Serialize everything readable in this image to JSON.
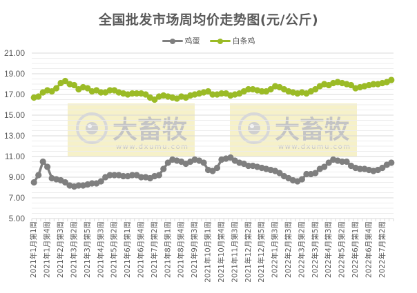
{
  "chart_data": {
    "type": "line",
    "title": "全国批发市场周均价走势图(元/公斤)",
    "xlabel": "",
    "ylabel": "",
    "ylim": [
      5.0,
      21.0
    ],
    "yticks": [
      "5.00",
      "7.00",
      "9.00",
      "11.00",
      "13.00",
      "15.00",
      "17.00",
      "19.00",
      "21.00"
    ],
    "grid": true,
    "legend_position": "top",
    "x_tick_labels": [
      "2021年1月第1周",
      "2021年1月第4周",
      "2021年2月第3周",
      "2021年3月第2周",
      "2021年3月第5周",
      "2021年4月第3周",
      "2021年5月第2周",
      "2021年6月第1周",
      "2021年6月第4周",
      "2021年7月第2周",
      "2021年8月第1周",
      "2021年8月第4周",
      "2021年9月第3周",
      "2021年10月第1周",
      "2021年10月第4周",
      "2021年11月第3周",
      "2021年12月第2周",
      "2021年12月第5周",
      "2022年1月第3周",
      "2022年2月第3周",
      "2022年3月第2周",
      "2022年3月第5周",
      "2022年4月第3周",
      "2022年5月第2周",
      "2022年6月第1周",
      "2022年6月第4周",
      "2022年7月第2周"
    ],
    "x_label_positions": [
      49,
      68,
      87,
      106,
      125,
      144,
      163,
      182,
      201,
      220,
      239,
      258,
      277,
      296,
      315,
      334,
      353,
      372,
      391,
      410,
      429,
      448,
      467,
      486,
      505,
      524,
      543
    ],
    "series": [
      {
        "name": "鸡蛋",
        "color": "#7f7f7f",
        "values": [
          8.5,
          9.2,
          10.5,
          10.0,
          8.9,
          8.8,
          8.7,
          8.5,
          8.2,
          8.1,
          8.2,
          8.2,
          8.3,
          8.4,
          8.4,
          8.6,
          9.0,
          9.2,
          9.2,
          9.2,
          9.1,
          9.1,
          9.2,
          9.2,
          9.0,
          9.0,
          8.9,
          9.1,
          9.2,
          9.8,
          10.4,
          10.7,
          10.6,
          10.5,
          10.3,
          10.5,
          10.7,
          10.6,
          10.4,
          9.7,
          9.6,
          9.9,
          10.7,
          10.8,
          10.9,
          10.6,
          10.4,
          10.3,
          10.1,
          10.1,
          10.0,
          9.9,
          9.8,
          9.7,
          9.6,
          9.4,
          9.1,
          8.9,
          8.7,
          8.6,
          8.8,
          9.3,
          9.3,
          9.4,
          9.8,
          10.0,
          10.4,
          10.7,
          10.6,
          10.5,
          10.5,
          10.1,
          9.9,
          9.8,
          9.8,
          9.7,
          9.6,
          9.7,
          9.9,
          10.2,
          10.4
        ]
      },
      {
        "name": "白条鸡",
        "color": "#9bbb26",
        "values": [
          16.7,
          16.8,
          17.2,
          17.4,
          17.3,
          17.6,
          18.1,
          18.3,
          18.0,
          17.9,
          17.5,
          17.7,
          17.6,
          17.3,
          17.4,
          17.2,
          17.2,
          17.4,
          17.4,
          17.2,
          17.1,
          17.0,
          17.1,
          17.1,
          17.1,
          17.0,
          16.7,
          16.5,
          16.8,
          16.9,
          16.8,
          16.7,
          16.6,
          16.8,
          16.7,
          16.9,
          17.0,
          17.1,
          17.2,
          17.3,
          17.0,
          17.0,
          17.1,
          17.1,
          16.9,
          17.0,
          17.1,
          17.3,
          17.5,
          17.5,
          17.4,
          17.3,
          17.3,
          17.5,
          17.8,
          17.7,
          17.5,
          17.3,
          17.2,
          17.1,
          17.2,
          17.1,
          17.3,
          17.5,
          17.8,
          18.0,
          17.9,
          18.1,
          18.2,
          18.1,
          18.0,
          17.9,
          17.6,
          17.7,
          17.8,
          17.9,
          18.0,
          18.0,
          18.1,
          18.2,
          18.4
        ]
      }
    ]
  },
  "legend": {
    "items": [
      {
        "label": "鸡蛋",
        "color": "#7f7f7f"
      },
      {
        "label": "白条鸡",
        "color": "#9bbb26"
      }
    ]
  },
  "watermark": {
    "brand": "大畜牧",
    "url": "www.dxumu.com"
  }
}
